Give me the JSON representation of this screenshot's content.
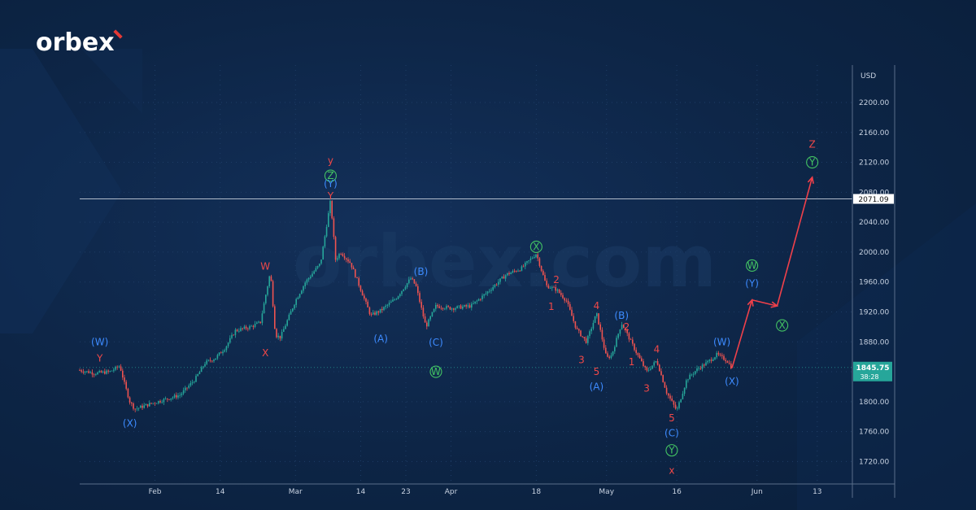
{
  "brand": {
    "logo_text": "orbex",
    "watermark": "orbex.com",
    "accent": "#e53935"
  },
  "colors": {
    "background": "#0d2546",
    "blue_labels": "#3d8bff",
    "red_labels": "#f04848",
    "green_labels": "#43c463",
    "arrow": "#f0404a",
    "price_tag": "#26a69a"
  },
  "chart_data": {
    "type": "line",
    "subtype": "candlestick with Elliott wave annotations",
    "currency_label": "USD",
    "ylim": [
      1690,
      2250
    ],
    "y_ticks": [
      "2200.00",
      "2160.00",
      "2120.00",
      "2080.00",
      "2040.00",
      "2000.00",
      "1960.00",
      "1920.00",
      "1880.00",
      "1840.00",
      "1800.00",
      "1760.00",
      "1720.00"
    ],
    "x_tick_labels": [
      {
        "label": "Feb",
        "date": "2022-02-01"
      },
      {
        "label": "14",
        "date": "2022-02-14"
      },
      {
        "label": "Mar",
        "date": "2022-03-01"
      },
      {
        "label": "14",
        "date": "2022-03-14"
      },
      {
        "label": "23",
        "date": "2022-03-23"
      },
      {
        "label": "Apr",
        "date": "2022-04-01"
      },
      {
        "label": "18",
        "date": "2022-04-18"
      },
      {
        "label": "May",
        "date": "2022-05-02"
      },
      {
        "label": "16",
        "date": "2022-05-16"
      },
      {
        "label": "Jun",
        "date": "2022-06-01"
      },
      {
        "label": "13",
        "date": "2022-06-13"
      }
    ],
    "horizontal_line": {
      "value": 2071.09,
      "label": "2071.09"
    },
    "current_price": {
      "value": 1845.75,
      "label": "1845.75",
      "countdown": "38:28"
    },
    "price_series": [
      {
        "date": "2022-01-17",
        "price": 1842
      },
      {
        "date": "2022-01-20",
        "price": 1838
      },
      {
        "date": "2022-01-23",
        "price": 1840
      },
      {
        "date": "2022-01-25",
        "price": 1848
      },
      {
        "date": "2022-01-26",
        "price": 1822
      },
      {
        "date": "2022-01-27",
        "price": 1800
      },
      {
        "date": "2022-01-28",
        "price": 1790
      },
      {
        "date": "2022-01-31",
        "price": 1797
      },
      {
        "date": "2022-02-03",
        "price": 1803
      },
      {
        "date": "2022-02-06",
        "price": 1809
      },
      {
        "date": "2022-02-09",
        "price": 1830
      },
      {
        "date": "2022-02-11",
        "price": 1852
      },
      {
        "date": "2022-02-13",
        "price": 1858
      },
      {
        "date": "2022-02-15",
        "price": 1872
      },
      {
        "date": "2022-02-17",
        "price": 1895
      },
      {
        "date": "2022-02-20",
        "price": 1900
      },
      {
        "date": "2022-02-22",
        "price": 1906
      },
      {
        "date": "2022-02-24",
        "price": 1974
      },
      {
        "date": "2022-02-25",
        "price": 1889
      },
      {
        "date": "2022-02-26",
        "price": 1886
      },
      {
        "date": "2022-03-01",
        "price": 1935
      },
      {
        "date": "2022-03-03",
        "price": 1960
      },
      {
        "date": "2022-03-06",
        "price": 1985
      },
      {
        "date": "2022-03-08",
        "price": 2069
      },
      {
        "date": "2022-03-09",
        "price": 1990
      },
      {
        "date": "2022-03-10",
        "price": 2000
      },
      {
        "date": "2022-03-12",
        "price": 1985
      },
      {
        "date": "2022-03-14",
        "price": 1950
      },
      {
        "date": "2022-03-16",
        "price": 1915
      },
      {
        "date": "2022-03-18",
        "price": 1922
      },
      {
        "date": "2022-03-21",
        "price": 1938
      },
      {
        "date": "2022-03-24",
        "price": 1965
      },
      {
        "date": "2022-03-25",
        "price": 1955
      },
      {
        "date": "2022-03-27",
        "price": 1900
      },
      {
        "date": "2022-03-29",
        "price": 1928
      },
      {
        "date": "2022-04-01",
        "price": 1925
      },
      {
        "date": "2022-04-05",
        "price": 1928
      },
      {
        "date": "2022-04-08",
        "price": 1945
      },
      {
        "date": "2022-04-12",
        "price": 1970
      },
      {
        "date": "2022-04-15",
        "price": 1978
      },
      {
        "date": "2022-04-18",
        "price": 1998
      },
      {
        "date": "2022-04-20",
        "price": 1955
      },
      {
        "date": "2022-04-22",
        "price": 1950
      },
      {
        "date": "2022-04-24",
        "price": 1935
      },
      {
        "date": "2022-04-26",
        "price": 1897
      },
      {
        "date": "2022-04-28",
        "price": 1880
      },
      {
        "date": "2022-04-30",
        "price": 1918
      },
      {
        "date": "2022-05-02",
        "price": 1858
      },
      {
        "date": "2022-05-03",
        "price": 1862
      },
      {
        "date": "2022-05-05",
        "price": 1905
      },
      {
        "date": "2022-05-08",
        "price": 1865
      },
      {
        "date": "2022-05-10",
        "price": 1840
      },
      {
        "date": "2022-05-12",
        "price": 1855
      },
      {
        "date": "2022-05-14",
        "price": 1812
      },
      {
        "date": "2022-05-16",
        "price": 1788
      },
      {
        "date": "2022-05-18",
        "price": 1830
      },
      {
        "date": "2022-05-20",
        "price": 1843
      },
      {
        "date": "2022-05-22",
        "price": 1852
      },
      {
        "date": "2022-05-24",
        "price": 1863
      },
      {
        "date": "2022-05-26",
        "price": 1855
      },
      {
        "date": "2022-05-27",
        "price": 1845
      }
    ],
    "projection": [
      {
        "date": "2022-05-27",
        "price": 1845
      },
      {
        "date": "2022-05-31",
        "price": 1936
      },
      {
        "date": "2022-06-05",
        "price": 1928
      },
      {
        "date": "2022-06-12",
        "price": 2100
      }
    ],
    "annotations": [
      {
        "text": "(W)",
        "date": "2022-01-21",
        "price": 1880,
        "color": "blue"
      },
      {
        "text": "Y",
        "date": "2022-01-21",
        "price": 1858,
        "color": "red"
      },
      {
        "text": "(X)",
        "date": "2022-01-27",
        "price": 1771,
        "color": "blue"
      },
      {
        "text": "W",
        "date": "2022-02-23",
        "price": 1981,
        "color": "red"
      },
      {
        "text": "X",
        "date": "2022-02-23",
        "price": 1865,
        "color": "red"
      },
      {
        "text": "y",
        "date": "2022-03-08",
        "price": 2122,
        "color": "red"
      },
      {
        "text": "Z",
        "date": "2022-03-08",
        "price": 2102,
        "color": "green",
        "circled": true
      },
      {
        "text": "(Y)",
        "date": "2022-03-08",
        "price": 2091,
        "color": "blue"
      },
      {
        "text": "Y",
        "date": "2022-03-08",
        "price": 2075,
        "color": "red"
      },
      {
        "text": "(A)",
        "date": "2022-03-18",
        "price": 1884,
        "color": "blue"
      },
      {
        "text": "(B)",
        "date": "2022-03-26",
        "price": 1974,
        "color": "blue"
      },
      {
        "text": "(C)",
        "date": "2022-03-29",
        "price": 1879,
        "color": "blue"
      },
      {
        "text": "W",
        "date": "2022-03-29",
        "price": 1840,
        "color": "green",
        "circled": true
      },
      {
        "text": "X",
        "date": "2022-04-18",
        "price": 2007,
        "color": "green",
        "circled": true
      },
      {
        "text": "2",
        "date": "2022-04-22",
        "price": 1963,
        "color": "red"
      },
      {
        "text": "1",
        "date": "2022-04-21",
        "price": 1927,
        "color": "red"
      },
      {
        "text": "4",
        "date": "2022-04-30",
        "price": 1928,
        "color": "red"
      },
      {
        "text": "3",
        "date": "2022-04-27",
        "price": 1856,
        "color": "red"
      },
      {
        "text": "5",
        "date": "2022-04-30",
        "price": 1840,
        "color": "red"
      },
      {
        "text": "(A)",
        "date": "2022-04-30",
        "price": 1820,
        "color": "blue"
      },
      {
        "text": "(B)",
        "date": "2022-05-05",
        "price": 1915,
        "color": "blue"
      },
      {
        "text": "2",
        "date": "2022-05-06",
        "price": 1900,
        "color": "red"
      },
      {
        "text": "1",
        "date": "2022-05-07",
        "price": 1853,
        "color": "red"
      },
      {
        "text": "4",
        "date": "2022-05-12",
        "price": 1870,
        "color": "red"
      },
      {
        "text": "3",
        "date": "2022-05-10",
        "price": 1818,
        "color": "red"
      },
      {
        "text": "5",
        "date": "2022-05-15",
        "price": 1778,
        "color": "red"
      },
      {
        "text": "(C)",
        "date": "2022-05-15",
        "price": 1758,
        "color": "blue"
      },
      {
        "text": "Y",
        "date": "2022-05-15",
        "price": 1735,
        "color": "green",
        "circled": true
      },
      {
        "text": "x",
        "date": "2022-05-15",
        "price": 1708,
        "color": "red"
      },
      {
        "text": "(W)",
        "date": "2022-05-25",
        "price": 1880,
        "color": "blue"
      },
      {
        "text": "(X)",
        "date": "2022-05-27",
        "price": 1827,
        "color": "blue"
      },
      {
        "text": "W",
        "date": "2022-05-31",
        "price": 1982,
        "color": "green",
        "circled": true
      },
      {
        "text": "(Y)",
        "date": "2022-05-31",
        "price": 1958,
        "color": "blue"
      },
      {
        "text": "X",
        "date": "2022-06-06",
        "price": 1902,
        "color": "green",
        "circled": true
      },
      {
        "text": "Z",
        "date": "2022-06-12",
        "price": 2144,
        "color": "red"
      },
      {
        "text": "Y",
        "date": "2022-06-12",
        "price": 2120,
        "color": "green",
        "circled": true
      }
    ]
  }
}
